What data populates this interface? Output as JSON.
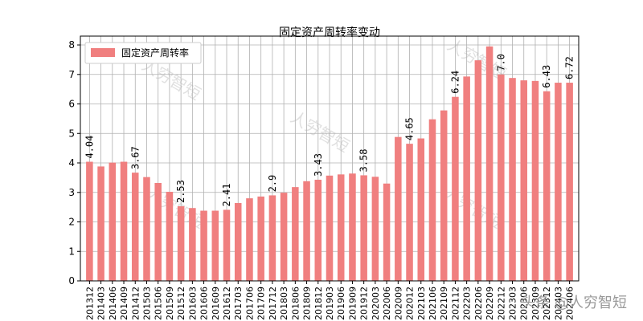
{
  "chart_data": {
    "type": "bar",
    "title": "固定资产周转率变动",
    "legend": {
      "label": "固定资产周转率",
      "placement": "top-left"
    },
    "color": "#f07f7f",
    "ylim": [
      0,
      8.3
    ],
    "yticks": [
      0,
      1,
      2,
      3,
      4,
      5,
      6,
      7,
      8
    ],
    "grid": true,
    "xlabel": "",
    "ylabel": "",
    "categories": [
      "201312",
      "201403",
      "201406",
      "201409",
      "201412",
      "201503",
      "201506",
      "201509",
      "201512",
      "201603",
      "201606",
      "201609",
      "201612",
      "201703",
      "201706",
      "201709",
      "201712",
      "201803",
      "201806",
      "201809",
      "201812",
      "201903",
      "201906",
      "201909",
      "201912",
      "202003",
      "202006",
      "202009",
      "202012",
      "202103",
      "202106",
      "202109",
      "202112",
      "202203",
      "202206",
      "202209",
      "202212",
      "202303",
      "202306",
      "202309",
      "202312",
      "202403",
      "202406"
    ],
    "values": [
      4.04,
      3.88,
      4.01,
      4.04,
      3.67,
      3.52,
      3.32,
      3.02,
      2.53,
      2.47,
      2.38,
      2.38,
      2.41,
      2.64,
      2.8,
      2.86,
      2.9,
      2.99,
      3.18,
      3.38,
      3.43,
      3.57,
      3.61,
      3.64,
      3.58,
      3.53,
      3.3,
      4.88,
      4.65,
      4.83,
      5.48,
      5.78,
      6.24,
      6.93,
      7.48,
      7.95,
      7.0,
      6.88,
      6.8,
      6.78,
      6.43,
      6.72,
      6.72
    ],
    "data_labels": [
      {
        "index": 0,
        "text": "4.04"
      },
      {
        "index": 4,
        "text": "3.67"
      },
      {
        "index": 8,
        "text": "2.53"
      },
      {
        "index": 12,
        "text": "2.41"
      },
      {
        "index": 16,
        "text": "2.9"
      },
      {
        "index": 20,
        "text": "3.43"
      },
      {
        "index": 24,
        "text": "3.58"
      },
      {
        "index": 28,
        "text": "4.65"
      },
      {
        "index": 32,
        "text": "6.24"
      },
      {
        "index": 36,
        "text": "7.0"
      },
      {
        "index": 40,
        "text": "6.43"
      },
      {
        "index": 42,
        "text": "6.72"
      }
    ]
  },
  "watermark": {
    "text": "人穷智短",
    "credit": "头条 @人穷智短"
  }
}
